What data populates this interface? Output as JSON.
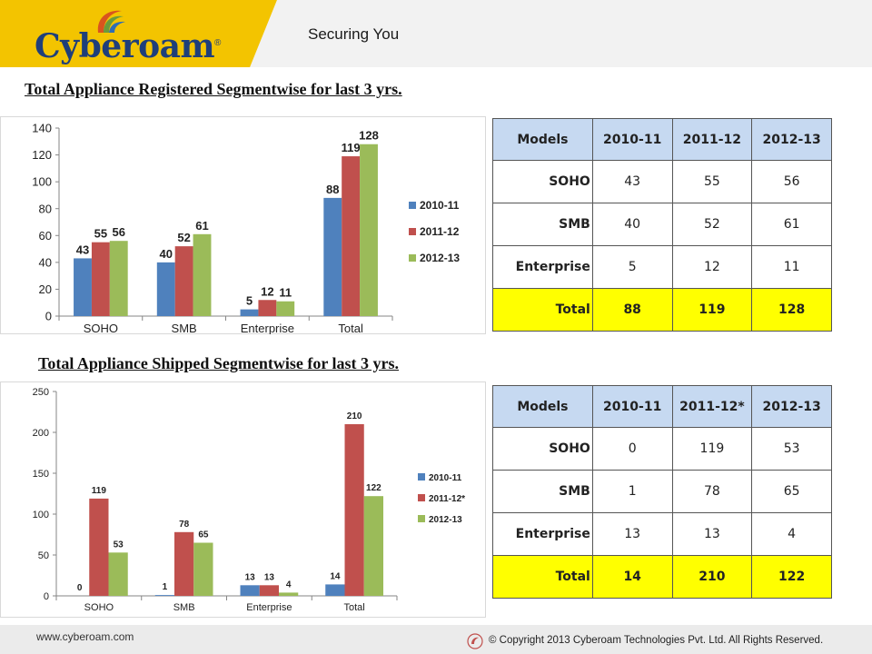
{
  "header": {
    "logo_text": "Cyberoam",
    "logo_reg": "®",
    "tagline": "Securing You"
  },
  "colors": {
    "series": [
      "#4f81bd",
      "#c0504d",
      "#9bbb59"
    ],
    "brand_yellow": "#f3c400",
    "table_header": "#c6d9f1",
    "total_row": "#ffff00"
  },
  "section1": {
    "title": "Total Appliance Registered Segmentwise for last 3 yrs."
  },
  "section2": {
    "title": "Total Appliance Shipped Segmentwise for last 3 yrs."
  },
  "chart_data": [
    {
      "type": "bar",
      "categories": [
        "SOHO",
        "SMB",
        "Enterprise",
        "Total"
      ],
      "series": [
        {
          "name": "2010-11",
          "values": [
            43,
            40,
            5,
            88
          ]
        },
        {
          "name": "2011-12",
          "values": [
            55,
            52,
            12,
            119
          ]
        },
        {
          "name": "2012-13",
          "values": [
            56,
            61,
            11,
            128
          ]
        }
      ],
      "title": "",
      "xlabel": "",
      "ylabel": "",
      "ylim": [
        0,
        140
      ],
      "yticks": [
        0,
        20,
        40,
        60,
        80,
        100,
        120,
        140
      ],
      "grid": false,
      "legend_position": "right",
      "data_labels": true
    },
    {
      "type": "bar",
      "categories": [
        "SOHO",
        "SMB",
        "Enterprise",
        "Total"
      ],
      "series": [
        {
          "name": "2010-11",
          "values": [
            0,
            1,
            13,
            14
          ]
        },
        {
          "name": "2011-12*",
          "values": [
            119,
            78,
            13,
            210
          ]
        },
        {
          "name": "2012-13",
          "values": [
            53,
            65,
            4,
            122
          ]
        }
      ],
      "title": "",
      "xlabel": "",
      "ylabel": "",
      "ylim": [
        0,
        250
      ],
      "yticks": [
        0,
        50,
        100,
        150,
        200,
        250
      ],
      "grid": false,
      "legend_position": "right",
      "data_labels": true
    }
  ],
  "table1": {
    "headers": [
      "Models",
      "2010-11",
      "2011-12",
      "2012-13"
    ],
    "rows": [
      [
        "SOHO",
        "43",
        "55",
        "56"
      ],
      [
        "SMB",
        "40",
        "52",
        "61"
      ],
      [
        "Enterprise",
        "5",
        "12",
        "11"
      ],
      [
        "Total",
        "88",
        "119",
        "128"
      ]
    ]
  },
  "table2": {
    "headers": [
      "Models",
      "2010-11",
      "2011-12*",
      "2012-13"
    ],
    "rows": [
      [
        "SOHO",
        "0",
        "119",
        "53"
      ],
      [
        "SMB",
        "1",
        "78",
        "65"
      ],
      [
        "Enterprise",
        "13",
        "13",
        "4"
      ],
      [
        "Total",
        "14",
        "210",
        "122"
      ]
    ]
  },
  "footer": {
    "url": "www.cyberoam.com",
    "copyright": "© Copyright 2013 Cyberoam Technologies Pvt. Ltd. All Rights Reserved."
  }
}
